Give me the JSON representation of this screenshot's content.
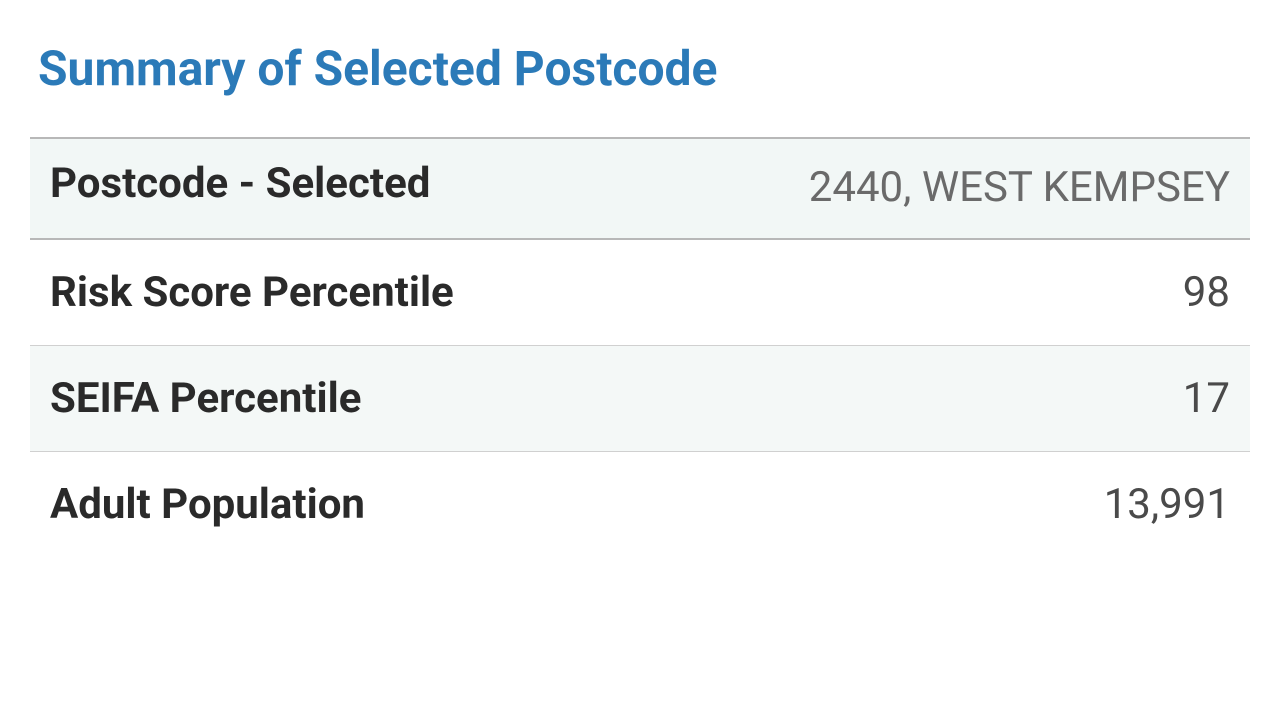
{
  "summary": {
    "title": "Summary of Selected Postcode",
    "header": {
      "label": "Postcode - Selected",
      "value": "2440, WEST KEMPSEY"
    },
    "rows": [
      {
        "label": "Risk Score Percentile",
        "value": "98"
      },
      {
        "label": "SEIFA Percentile",
        "value": "17"
      },
      {
        "label": "Adult Population",
        "value": "13,991"
      }
    ],
    "colors": {
      "title": "#2b7ab8",
      "label_text": "#2a2a2a",
      "value_text": "#4a4a4a",
      "header_value_text": "#6a6a6a",
      "shaded_bg": "#f4f8f7",
      "border": "#b8b8b8",
      "row_border": "#d0d0d0",
      "background": "#ffffff"
    },
    "typography": {
      "title_fontsize": 48,
      "title_weight": 700,
      "label_fontsize": 42,
      "label_weight": 700,
      "value_fontsize": 42,
      "value_weight": 400
    }
  }
}
